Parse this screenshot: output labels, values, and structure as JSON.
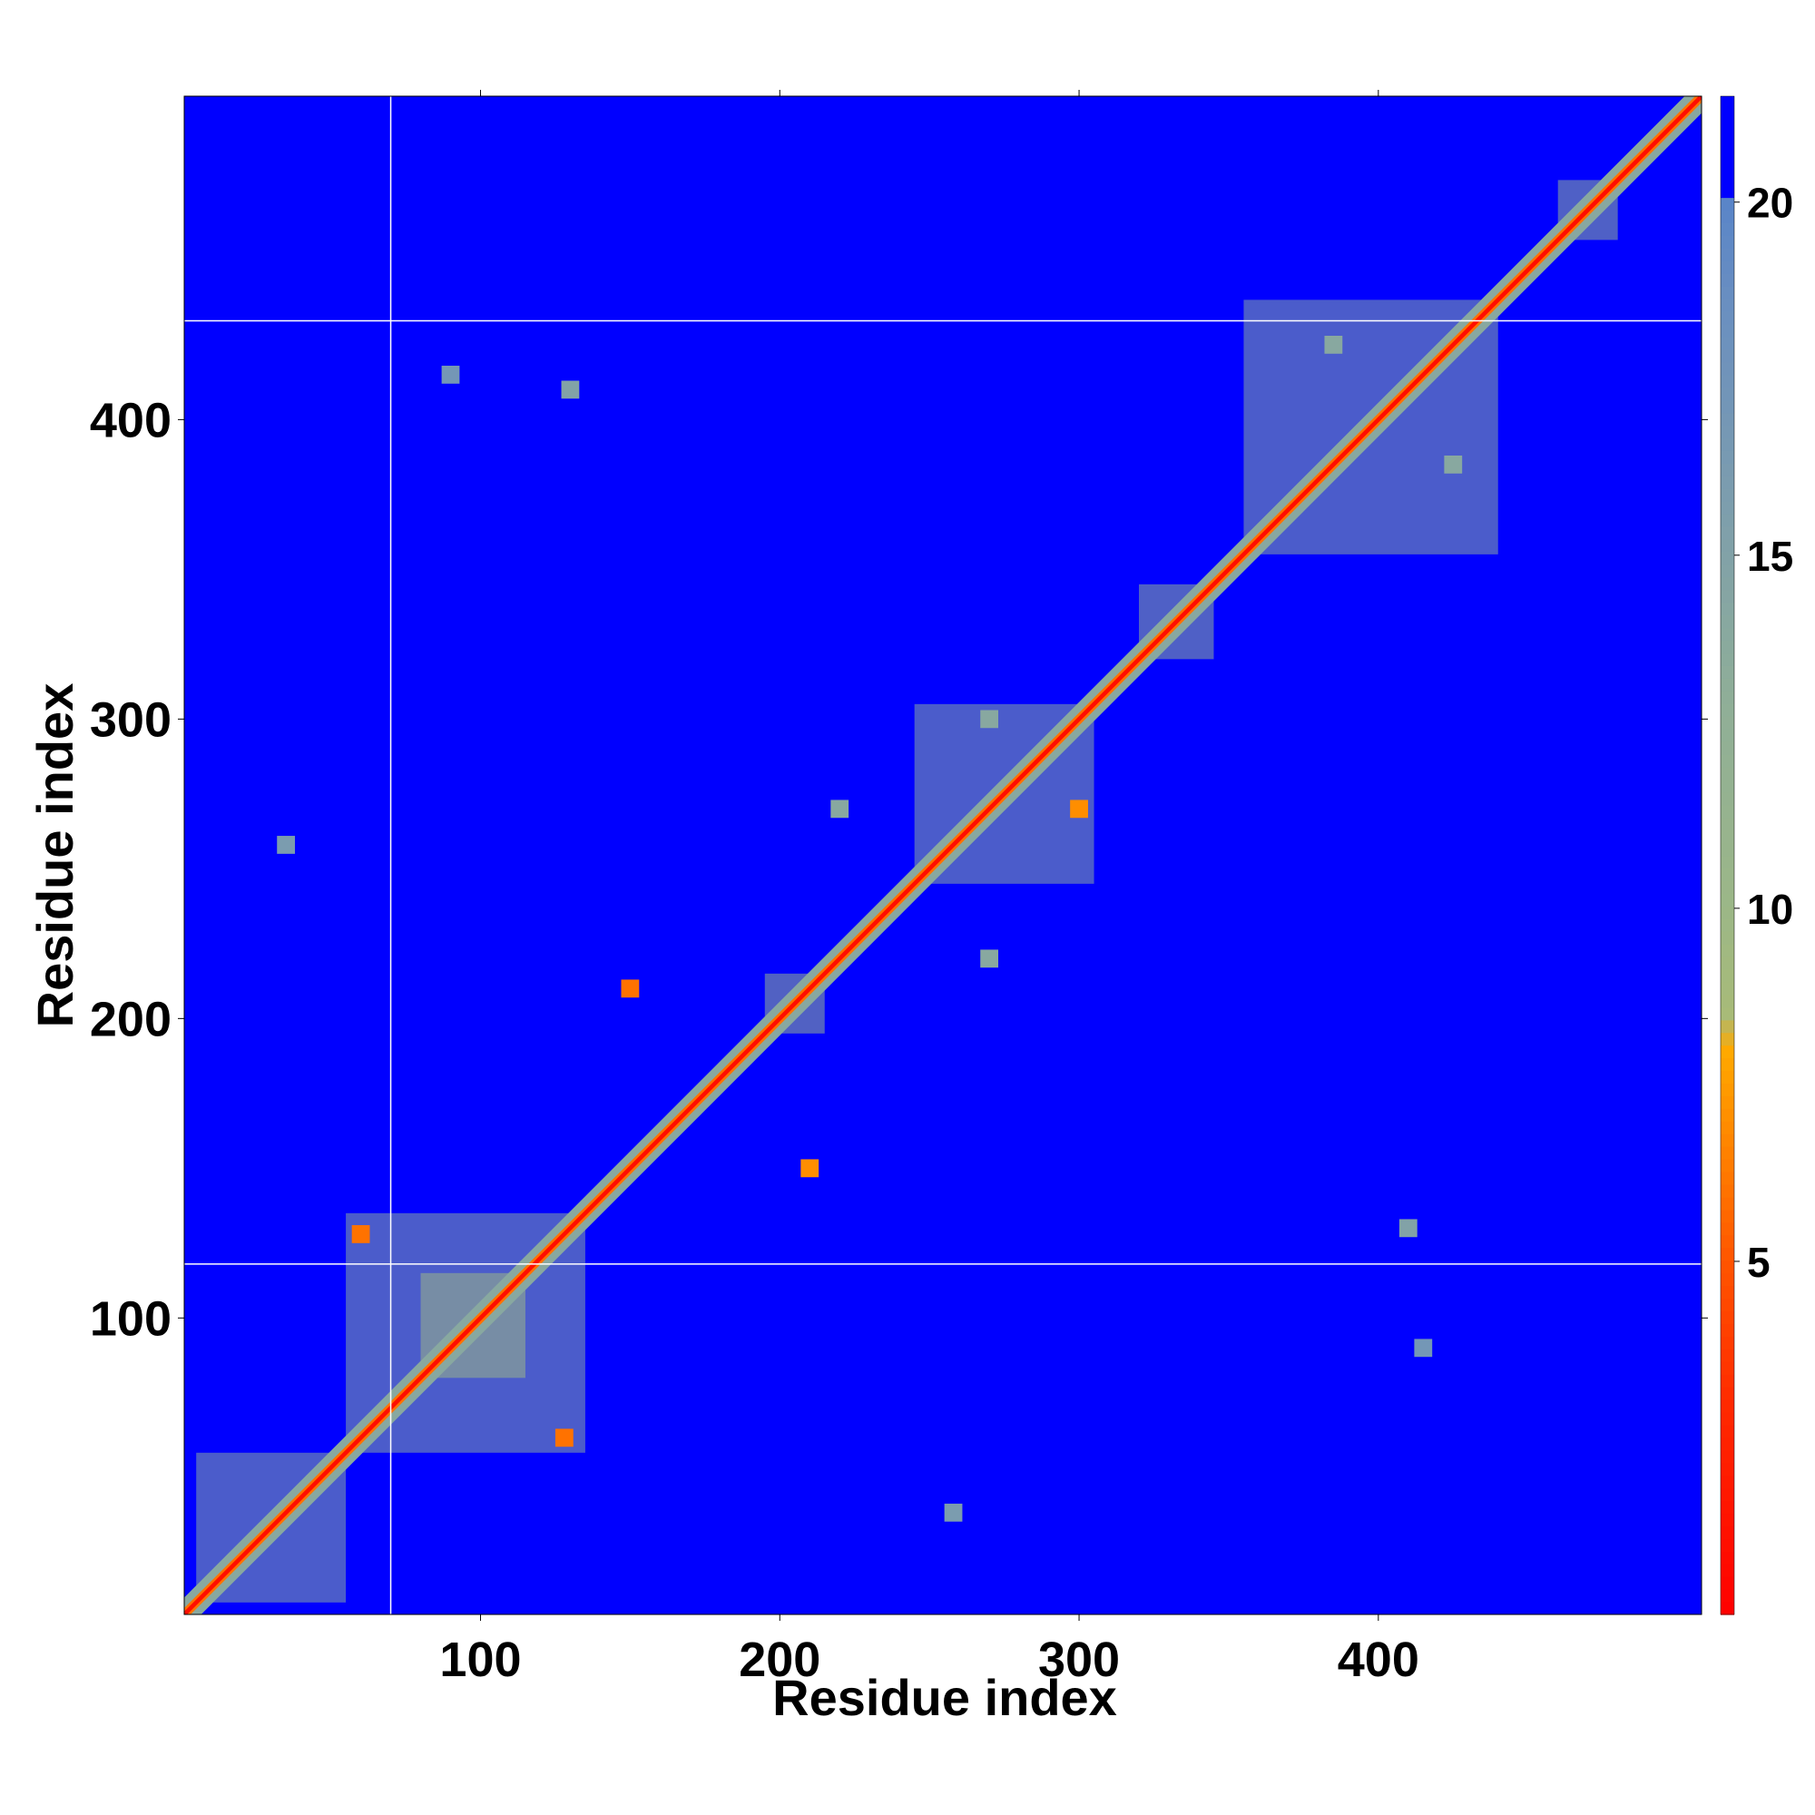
{
  "chart_data": {
    "type": "heatmap",
    "title": "",
    "xlabel": "Residue index",
    "ylabel": "Residue index",
    "xlim": [
      1,
      508
    ],
    "ylim": [
      1,
      508
    ],
    "x_ticks": [
      100,
      200,
      300,
      400
    ],
    "y_ticks": [
      100,
      200,
      300,
      400
    ],
    "colorbar": {
      "range": [
        0,
        21.5
      ],
      "ticks": [
        5,
        10,
        15,
        20
      ],
      "stops": [
        {
          "value": 0,
          "color": "#ff0000"
        },
        {
          "value": 3,
          "color": "#ff2a00"
        },
        {
          "value": 5,
          "color": "#ff5500"
        },
        {
          "value": 6.5,
          "color": "#ff8000"
        },
        {
          "value": 8,
          "color": "#ffaa00"
        },
        {
          "value": 8.5,
          "color": "#a8bb78"
        },
        {
          "value": 10,
          "color": "#9cb787"
        },
        {
          "value": 13,
          "color": "#8fae98"
        },
        {
          "value": 16,
          "color": "#7b9caf"
        },
        {
          "value": 18.5,
          "color": "#6a8fc0"
        },
        {
          "value": 20,
          "color": "#5a85c8"
        },
        {
          "value": 20.01,
          "color": "#0000ff"
        },
        {
          "value": 21.5,
          "color": "#0000ff"
        }
      ]
    },
    "background_value": 21,
    "diagonal": {
      "core_value": 1,
      "shoulder_value": 6,
      "halo_value": 14
    },
    "regions": [
      {
        "x": [
          5,
          55
        ],
        "y": [
          5,
          55
        ],
        "value": 14
      },
      {
        "x": [
          55,
          135
        ],
        "y": [
          55,
          135
        ],
        "value": 14
      },
      {
        "x": [
          80,
          115
        ],
        "y": [
          80,
          115
        ],
        "value": 10
      },
      {
        "x": [
          195,
          215
        ],
        "y": [
          195,
          215
        ],
        "value": 12
      },
      {
        "x": [
          245,
          305
        ],
        "y": [
          245,
          305
        ],
        "value": 14
      },
      {
        "x": [
          320,
          345
        ],
        "y": [
          320,
          345
        ],
        "value": 13
      },
      {
        "x": [
          355,
          440
        ],
        "y": [
          355,
          440
        ],
        "value": 14
      },
      {
        "x": [
          460,
          480
        ],
        "y": [
          460,
          480
        ],
        "value": 13
      }
    ],
    "off_diagonal_contacts": [
      {
        "x": 150,
        "y": 210,
        "value": 6
      },
      {
        "x": 60,
        "y": 128,
        "value": 6
      },
      {
        "x": 128,
        "y": 60,
        "value": 6
      },
      {
        "x": 210,
        "y": 150,
        "value": 7
      },
      {
        "x": 270,
        "y": 220,
        "value": 14
      },
      {
        "x": 220,
        "y": 270,
        "value": 14
      },
      {
        "x": 300,
        "y": 270,
        "value": 7
      },
      {
        "x": 270,
        "y": 300,
        "value": 14
      },
      {
        "x": 425,
        "y": 385,
        "value": 14
      },
      {
        "x": 385,
        "y": 425,
        "value": 14
      },
      {
        "x": 410,
        "y": 130,
        "value": 15
      },
      {
        "x": 130,
        "y": 410,
        "value": 15
      },
      {
        "x": 35,
        "y": 258,
        "value": 16
      },
      {
        "x": 258,
        "y": 35,
        "value": 16
      },
      {
        "x": 90,
        "y": 415,
        "value": 17
      },
      {
        "x": 415,
        "y": 90,
        "value": 17
      }
    ],
    "gap_lines": {
      "x": [
        70
      ],
      "y": [
        118,
        433
      ]
    },
    "grid": false,
    "legend": "colorbar-right"
  }
}
